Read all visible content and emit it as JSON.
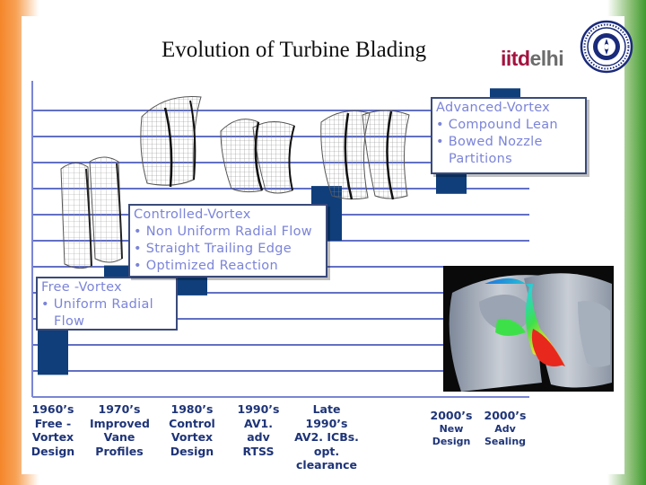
{
  "slide": {
    "title": "Evolution of Turbine Blading",
    "logo": {
      "part1": "iitd",
      "part2": "elhi"
    },
    "seal_icon": "iit-delhi-seal-icon"
  },
  "colors": {
    "bar": "#0f3e7a",
    "gridline": "#2f40b0",
    "axis": "#7a86d6",
    "callout_text": "#7b84d9",
    "caption_text": "#1e3478"
  },
  "callouts": {
    "free_vortex": {
      "heading": "Free -Vortex",
      "bullets": [
        "Uniform Radial"
      ],
      "continuation": "Flow"
    },
    "controlled_vortex": {
      "heading": "Controlled-Vortex",
      "bullets": [
        "Non Uniform Radial Flow",
        "Straight Trailing Edge",
        "Optimized Reaction"
      ]
    },
    "advanced_vortex": {
      "heading": "Advanced-Vortex",
      "bullets": [
        "Compound Lean",
        "Bowed Nozzle"
      ],
      "continuation": "Partitions"
    }
  },
  "chart_data": {
    "type": "bar",
    "ylim": [
      0,
      12
    ],
    "grid": true,
    "categories": [
      [
        "1960’s",
        "Free -",
        "Vortex",
        "Design"
      ],
      [
        "1970’s",
        "Improved",
        "Vane",
        "Profiles"
      ],
      [
        "1980’s",
        "Control",
        "Vortex",
        "Design"
      ],
      [
        "1990’s",
        "AV1.",
        "adv",
        "RTSS"
      ],
      [
        "Late 1990’s",
        "AV2. ICBs.",
        "opt.",
        "clearance"
      ],
      [
        "2000’s",
        "New",
        "Design"
      ],
      [
        "2000’s",
        "Adv Sealing"
      ]
    ],
    "bars": [
      {
        "low": 0.85,
        "high": 2.75
      },
      {
        "low": 2.85,
        "high": 5.05
      },
      {
        "low": 3.9,
        "high": 6.05
      },
      {
        "low": 5.3,
        "high": 6.7
      },
      {
        "low": 6.0,
        "high": 8.1
      },
      {
        "low": 7.8,
        "high": 9.8
      },
      {
        "low": 9.75,
        "high": 11.85
      }
    ]
  }
}
